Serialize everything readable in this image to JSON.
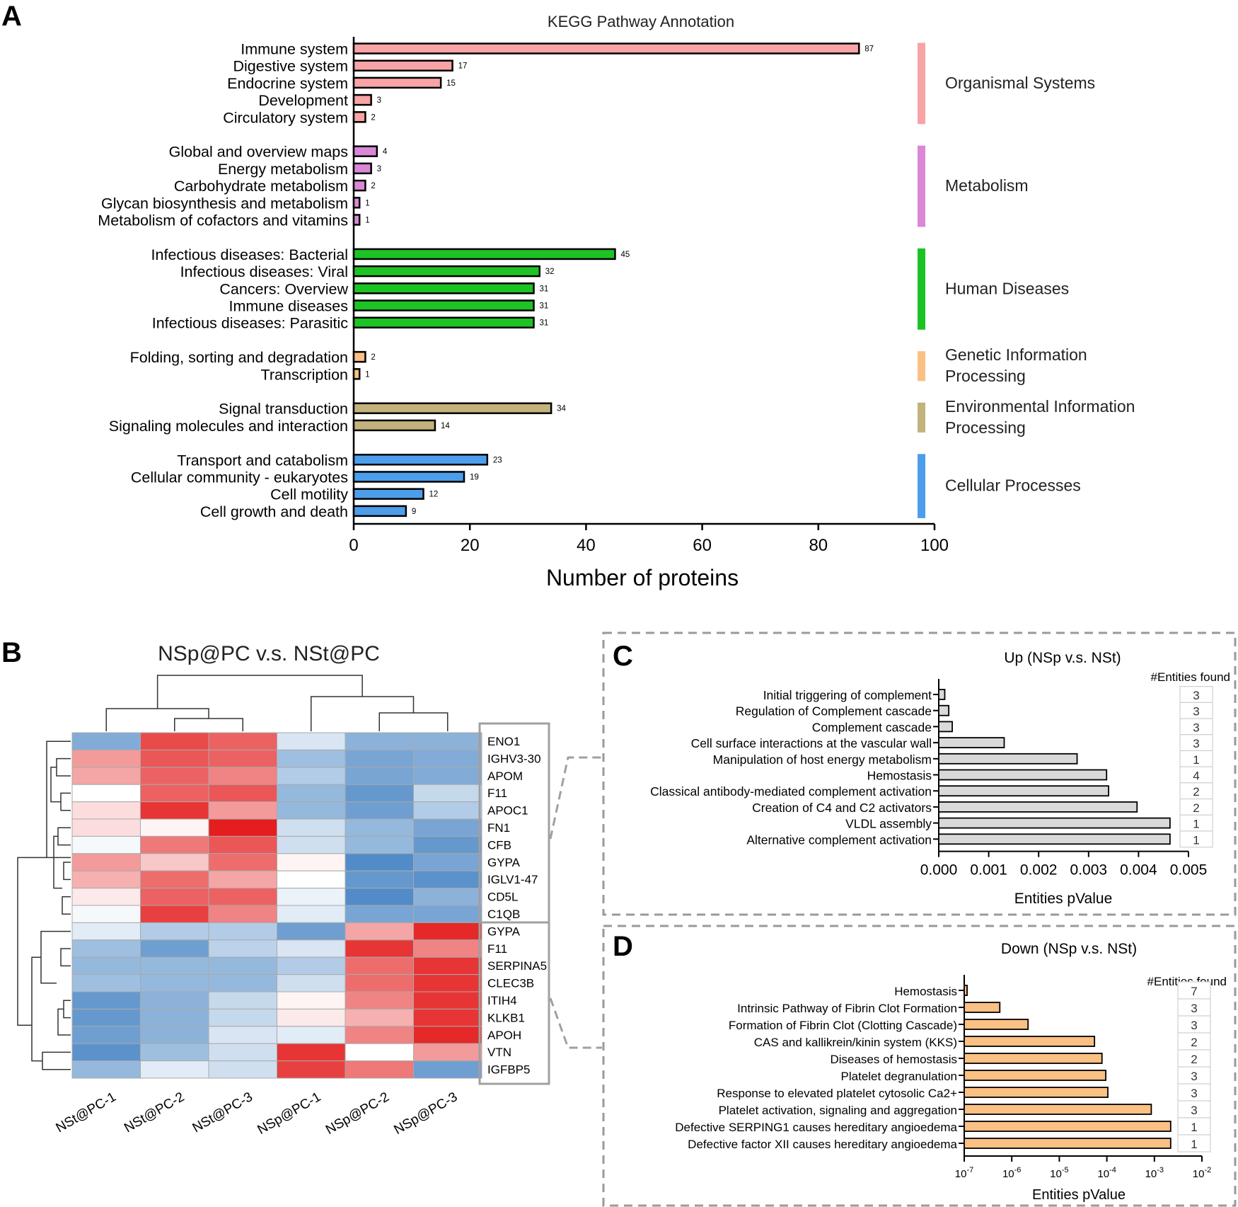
{
  "panels": [
    {
      "letter": "A"
    },
    {
      "letter": "B"
    },
    {
      "letter": "C"
    },
    {
      "letter": "D"
    }
  ],
  "chart_data": [
    {
      "panel": "A",
      "type": "bar",
      "orientation": "horizontal",
      "title": "KEGG Pathway Annotation",
      "xlabel": "Number of proteins",
      "ylabel": "",
      "xlim": [
        0,
        100
      ],
      "xticks": [
        "0",
        "20",
        "40",
        "60",
        "80",
        "100"
      ],
      "groups": [
        {
          "name": "Organismal Systems",
          "color": "#F8A3A6",
          "bars": [
            {
              "label": "Immune system",
              "value": 87
            },
            {
              "label": "Digestive system",
              "value": 17
            },
            {
              "label": "Endocrine system",
              "value": 15
            },
            {
              "label": "Development",
              "value": 3
            },
            {
              "label": "Circulatory system",
              "value": 2
            }
          ]
        },
        {
          "name": "Metabolism",
          "color": "#DA88D5",
          "bars": [
            {
              "label": "Global and overview maps",
              "value": 4
            },
            {
              "label": "Energy metabolism",
              "value": 3
            },
            {
              "label": "Carbohydrate metabolism",
              "value": 2
            },
            {
              "label": "Glycan biosynthesis and metabolism",
              "value": 1
            },
            {
              "label": "Metabolism of cofactors and vitamins",
              "value": 1
            }
          ]
        },
        {
          "name": "Human Diseases",
          "color": "#1DC324",
          "bars": [
            {
              "label": "Infectious diseases: Bacterial",
              "value": 45
            },
            {
              "label": "Infectious diseases: Viral",
              "value": 32
            },
            {
              "label": "Cancers: Overview",
              "value": 31
            },
            {
              "label": "Immune diseases",
              "value": 31
            },
            {
              "label": "Infectious diseases: Parasitic",
              "value": 31
            }
          ]
        },
        {
          "name": "Genetic Information Processing",
          "color": "#FBC084",
          "bars": [
            {
              "label": "Folding, sorting and degradation",
              "value": 2
            },
            {
              "label": "Transcription",
              "value": 1
            }
          ]
        },
        {
          "name": "Environmental Information Processing",
          "color": "#C2B27C",
          "bars": [
            {
              "label": "Signal transduction",
              "value": 34
            },
            {
              "label": "Signaling molecules and interaction",
              "value": 14
            }
          ]
        },
        {
          "name": "Cellular Processes",
          "color": "#4C9EEB",
          "bars": [
            {
              "label": "Transport and catabolism",
              "value": 23
            },
            {
              "label": "Cellular community - eukaryotes",
              "value": 19
            },
            {
              "label": "Cell motility",
              "value": 12
            },
            {
              "label": "Cell growth and death",
              "value": 9
            }
          ]
        }
      ]
    },
    {
      "panel": "B",
      "type": "heatmap",
      "title": "NSp@PC v.s. NSt@PC",
      "columns": [
        "NSt@PC-1",
        "NSt@PC-2",
        "NSt@PC-3",
        "NSp@PC-1",
        "NSp@PC-2",
        "NSp@PC-3"
      ],
      "rows": [
        "ENO1",
        "IGHV3-30",
        "APOM",
        "F11",
        "APOC1",
        "FN1",
        "CFB",
        "GYPA",
        "IGLV1-47",
        "CD5L",
        "C1QB",
        "GYPA",
        "F11",
        "SERPINA5",
        "CLEC3B",
        "ITIH4",
        "KLKB1",
        "APOH",
        "VTN",
        "IGFBP5"
      ],
      "color_scale": {
        "low": "#3F7FC2",
        "mid": "#FFFFFF",
        "high": "#E41E1E"
      },
      "values": [
        [
          -0.65,
          0.8,
          0.7,
          -0.2,
          -0.6,
          -0.6
        ],
        [
          0.45,
          0.75,
          0.7,
          -0.5,
          -0.7,
          -0.65
        ],
        [
          0.4,
          0.7,
          0.55,
          -0.4,
          -0.7,
          -0.65
        ],
        [
          0.0,
          0.7,
          0.75,
          -0.55,
          -0.8,
          -0.3
        ],
        [
          0.15,
          0.9,
          0.45,
          -0.55,
          -0.75,
          -0.4
        ],
        [
          0.15,
          0.05,
          1.0,
          -0.25,
          -0.55,
          -0.7
        ],
        [
          -0.05,
          0.6,
          0.75,
          -0.25,
          -0.55,
          -0.8
        ],
        [
          0.45,
          0.25,
          0.65,
          0.05,
          -0.9,
          -0.7
        ],
        [
          0.35,
          0.65,
          0.4,
          0.0,
          -0.8,
          -0.85
        ],
        [
          0.1,
          0.7,
          0.7,
          -0.1,
          -0.9,
          -0.6
        ],
        [
          -0.05,
          0.85,
          0.55,
          -0.15,
          -0.7,
          -0.7
        ],
        [
          -0.15,
          -0.4,
          -0.4,
          -0.75,
          0.4,
          0.95
        ],
        [
          -0.5,
          -0.75,
          -0.35,
          -0.2,
          0.9,
          0.55
        ],
        [
          -0.55,
          -0.55,
          -0.55,
          -0.4,
          0.65,
          0.9
        ],
        [
          -0.5,
          -0.55,
          -0.55,
          -0.25,
          0.65,
          0.9
        ],
        [
          -0.8,
          -0.6,
          -0.3,
          0.05,
          0.55,
          0.9
        ],
        [
          -0.8,
          -0.6,
          -0.3,
          0.1,
          0.35,
          0.9
        ],
        [
          -0.75,
          -0.6,
          -0.2,
          -0.15,
          0.55,
          0.95
        ],
        [
          -0.85,
          -0.5,
          -0.25,
          0.9,
          0.0,
          0.45
        ],
        [
          -0.55,
          -0.15,
          -0.25,
          0.85,
          0.6,
          -0.75
        ]
      ]
    },
    {
      "panel": "C",
      "type": "bar",
      "orientation": "horizontal",
      "title": "Up (NSp v.s. NSt)",
      "xlabel": "Entities pValue",
      "ylabel": "",
      "xlim": [
        0,
        0.005
      ],
      "xticks": [
        "0.000",
        "0.001",
        "0.002",
        "0.003",
        "0.004",
        "0.005"
      ],
      "bar_color": "#D9D9D9",
      "entities_header": "#Entities found",
      "categories": [
        "Initial triggering of complement",
        "Regulation of Complement cascade",
        "Complement cascade",
        "Cell surface interactions at the vascular wall",
        "Manipulation of host energy metabolism",
        "Hemostasis",
        "Classical antibody-mediated complement activation",
        "Creation of C4 and C2 activators",
        "VLDL assembly",
        "Alternative complement activation"
      ],
      "values": [
        0.00012,
        0.0002,
        0.00027,
        0.00131,
        0.00277,
        0.00336,
        0.0034,
        0.00397,
        0.00463,
        0.00463
      ],
      "entities_found": [
        "3",
        "3",
        "3",
        "3",
        "1",
        "4",
        "2",
        "2",
        "1",
        "1"
      ]
    },
    {
      "panel": "D",
      "type": "bar",
      "orientation": "horizontal",
      "title": "Down (NSp v.s. NSt)",
      "xlabel": "Entities pValue",
      "ylabel": "",
      "xscale": "log",
      "xlim": [
        1e-07,
        0.01
      ],
      "xticks": [
        {
          "base": "10",
          "exp": "-7"
        },
        {
          "base": "10",
          "exp": "-6"
        },
        {
          "base": "10",
          "exp": "-5"
        },
        {
          "base": "10",
          "exp": "-4"
        },
        {
          "base": "10",
          "exp": "-3"
        },
        {
          "base": "10",
          "exp": "-2"
        }
      ],
      "bar_color": "#FBC084",
      "entities_header": "#Entities found",
      "categories": [
        "Hemostasis",
        "Intrinsic Pathway of Fibrin Clot Formation",
        "Formation of Fibrin Clot (Clotting Cascade)",
        "CAS and kallikrein/kinin system (KKS)",
        "Diseases of hemostasis",
        "Platelet degranulation",
        "Response to elevated platelet cytosolic Ca2+",
        "Platelet activation, signaling and aggregation",
        "Defective SERPING1 causes hereditary angioedema",
        "Defective factor XII causes hereditary angioedema"
      ],
      "values": [
        1.15e-07,
        5.6e-07,
        2.2e-06,
        5.5e-05,
        7.9e-05,
        9.5e-05,
        0.000105,
        0.00086,
        0.0022,
        0.0022
      ],
      "entities_found": [
        "7",
        "3",
        "3",
        "2",
        "2",
        "3",
        "3",
        "3",
        "1",
        "1"
      ]
    }
  ]
}
